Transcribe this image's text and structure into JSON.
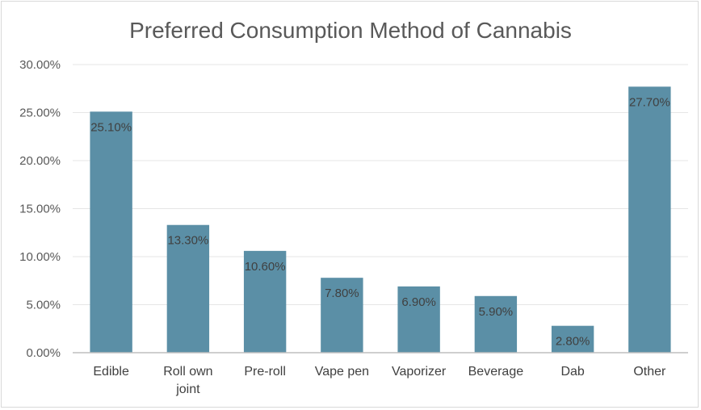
{
  "chart_data": {
    "type": "bar",
    "title": "Preferred Consumption Method of Cannabis",
    "xlabel": "",
    "ylabel": "",
    "categories": [
      "Edible",
      "Roll own joint",
      "Pre-roll",
      "Vape pen",
      "Vaporizer",
      "Beverage",
      "Dab",
      "Other"
    ],
    "category_lines": [
      [
        "Edible"
      ],
      [
        "Roll own",
        "joint"
      ],
      [
        "Pre-roll"
      ],
      [
        "Vape pen"
      ],
      [
        "Vaporizer"
      ],
      [
        "Beverage"
      ],
      [
        "Dab"
      ],
      [
        "Other"
      ]
    ],
    "values": [
      25.1,
      13.3,
      10.6,
      7.8,
      6.9,
      5.9,
      2.8,
      27.7
    ],
    "data_labels": [
      "25.10%",
      "13.30%",
      "10.60%",
      "7.80%",
      "6.90%",
      "5.90%",
      "2.80%",
      "27.70%"
    ],
    "ylim": [
      0,
      30
    ],
    "yticks": [
      0,
      5,
      10,
      15,
      20,
      25,
      30
    ],
    "ytick_labels": [
      "0.00%",
      "5.00%",
      "10.00%",
      "15.00%",
      "20.00%",
      "25.00%",
      "30.00%"
    ],
    "grid": true,
    "legend": "none",
    "bar_color": "#5b8fa6",
    "grid_color": "#e6e6e6",
    "axis_color": "#bfbfbf"
  }
}
